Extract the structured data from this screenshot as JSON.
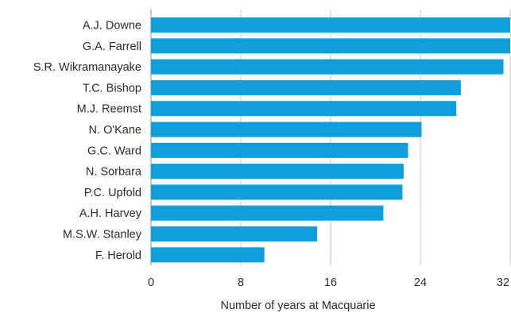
{
  "chart_data": {
    "type": "bar",
    "orientation": "horizontal",
    "categories": [
      "A.J. Downe",
      "G.A. Farrell",
      "S.R. Wikramanayake",
      "T.C. Bishop",
      "M.J. Reemst",
      "N. O'Kane",
      "G.C. Ward",
      "N. Sorbara",
      "P.C. Upfold",
      "A.H. Harvey",
      "M.S.W. Stanley",
      "F. Herold"
    ],
    "values": [
      32,
      32,
      31.4,
      27.6,
      27.2,
      24.1,
      22.9,
      22.5,
      22.4,
      20.7,
      14.8,
      10.1
    ],
    "xlabel": "Number of years at Macquarie",
    "ylabel": "",
    "title": "",
    "xlim": [
      0,
      32
    ],
    "xticks": [
      "0",
      "8",
      "16",
      "24",
      "32"
    ],
    "grid": true,
    "bar_color": "#0d9edb",
    "legend": "none"
  }
}
